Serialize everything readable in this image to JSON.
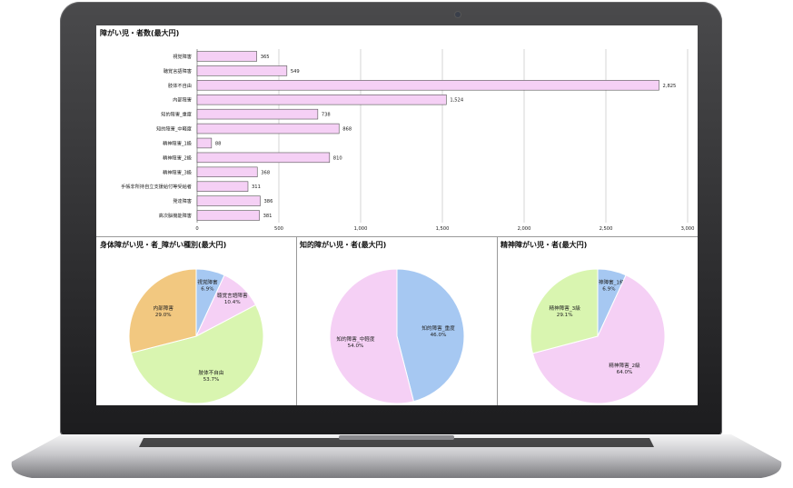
{
  "chart_data": [
    {
      "type": "bar",
      "title": "障がい児・者数(最大円)",
      "categories": [
        "視覚障害",
        "聴覚言語障害",
        "肢体不自由",
        "内部障害",
        "知的障害_重度",
        "知的障害_中軽度",
        "精神障害_1級",
        "精神障害_2級",
        "精神障害_3級",
        "手帳非所持自立支援給付等受給者",
        "発達障害",
        "高次脳機能障害"
      ],
      "values": [
        365,
        549,
        2825,
        1524,
        738,
        868,
        88,
        810,
        368,
        311,
        386,
        381
      ],
      "value_labels": [
        "365",
        "549",
        "2,825",
        "1,524",
        "738",
        "868",
        "88",
        "810",
        "368",
        "311",
        "386",
        "381"
      ],
      "xlim": [
        0,
        3000
      ],
      "ticks": [
        "0",
        "500",
        "1,000",
        "1,500",
        "2,000",
        "2,500",
        "3,000"
      ],
      "grid": true,
      "bar_color": "#f5d0f5"
    },
    {
      "type": "pie",
      "title": "身体障がい児・者_障がい種別(最大円)",
      "slices": [
        {
          "label": "視覚障害",
          "pct": "6.9%",
          "value": 6.9,
          "color": "#a6c8f2"
        },
        {
          "label": "聴覚言語障害",
          "pct": "10.4%",
          "value": 10.4,
          "color": "#f5d0f5"
        },
        {
          "label": "肢体不自由",
          "pct": "53.7%",
          "value": 53.7,
          "color": "#d9f5b0"
        },
        {
          "label": "内部障害",
          "pct": "29.0%",
          "value": 29.0,
          "color": "#f2c880"
        }
      ]
    },
    {
      "type": "pie",
      "title": "知的障がい児・者(最大円)",
      "slices": [
        {
          "label": "知的障害_重度",
          "pct": "46.0%",
          "value": 46.0,
          "color": "#a6c8f2"
        },
        {
          "label": "知的障害_中軽度",
          "pct": "54.0%",
          "value": 54.0,
          "color": "#f5d0f5"
        }
      ]
    },
    {
      "type": "pie",
      "title": "精神障がい児・者(最大円)",
      "slices": [
        {
          "label": "精神障害_1級",
          "pct": "6.9%",
          "value": 6.9,
          "color": "#a6c8f2"
        },
        {
          "label": "精神障害_2級",
          "pct": "64.0%",
          "value": 64.0,
          "color": "#f5d0f5"
        },
        {
          "label": "精神障害_3級",
          "pct": "29.1%",
          "value": 29.1,
          "color": "#d9f5b0"
        }
      ]
    }
  ]
}
